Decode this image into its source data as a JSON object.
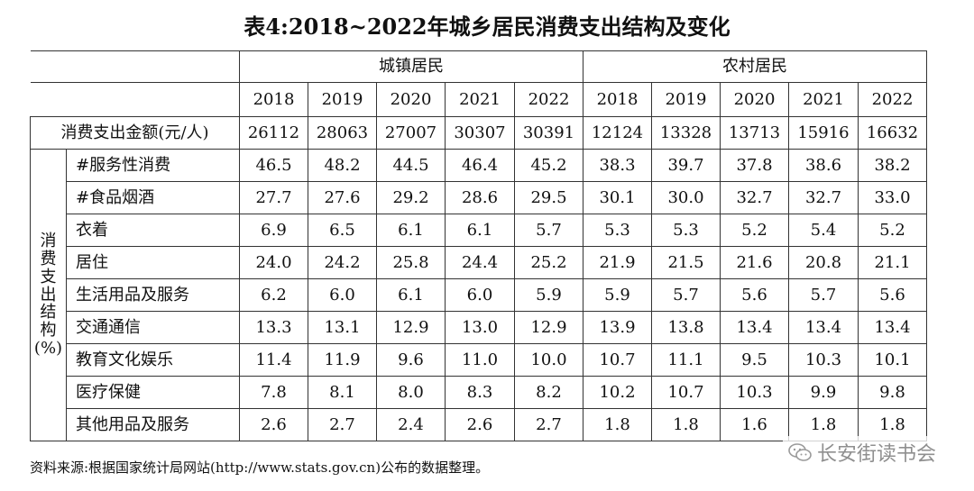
{
  "title": "表4:2018~2022年城乡居民消费支出结构及变化",
  "groups": [
    "城镇居民",
    "农村居民"
  ],
  "years": [
    "2018",
    "2019",
    "2020",
    "2021",
    "2022",
    "2018",
    "2019",
    "2020",
    "2021",
    "2022"
  ],
  "total_row": {
    "label": "消费支出金额(元/人)",
    "values": [
      "26112",
      "28063",
      "27007",
      "30307",
      "30391",
      "12124",
      "13328",
      "13713",
      "15916",
      "16632"
    ]
  },
  "side_label_chars": [
    "消",
    "费",
    "支",
    "出",
    "结",
    "构",
    "(%)"
  ],
  "rows": [
    {
      "label": "#服务性消费",
      "values": [
        "46.5",
        "48.2",
        "44.5",
        "46.4",
        "45.2",
        "38.3",
        "39.7",
        "37.8",
        "38.6",
        "38.2"
      ]
    },
    {
      "label": "#食品烟酒",
      "values": [
        "27.7",
        "27.6",
        "29.2",
        "28.6",
        "29.5",
        "30.1",
        "30.0",
        "32.7",
        "32.7",
        "33.0"
      ]
    },
    {
      "label": "衣着",
      "values": [
        "6.9",
        "6.5",
        "6.1",
        "6.1",
        "5.7",
        "5.3",
        "5.3",
        "5.2",
        "5.4",
        "5.2"
      ]
    },
    {
      "label": "居住",
      "values": [
        "24.0",
        "24.2",
        "25.8",
        "24.4",
        "25.2",
        "21.9",
        "21.5",
        "21.6",
        "20.8",
        "21.1"
      ]
    },
    {
      "label": "生活用品及服务",
      "values": [
        "6.2",
        "6.0",
        "6.1",
        "6.0",
        "5.9",
        "5.9",
        "5.7",
        "5.6",
        "5.7",
        "5.6"
      ]
    },
    {
      "label": "交通通信",
      "values": [
        "13.3",
        "13.1",
        "12.9",
        "13.0",
        "12.9",
        "13.9",
        "13.8",
        "13.4",
        "13.4",
        "13.4"
      ]
    },
    {
      "label": "教育文化娱乐",
      "values": [
        "11.4",
        "11.9",
        "9.6",
        "11.0",
        "10.0",
        "10.7",
        "11.1",
        "9.5",
        "10.3",
        "10.1"
      ]
    },
    {
      "label": "医疗保健",
      "values": [
        "7.8",
        "8.1",
        "8.0",
        "8.3",
        "8.2",
        "10.2",
        "10.7",
        "10.3",
        "9.9",
        "9.8"
      ]
    },
    {
      "label": "其他用品及服务",
      "values": [
        "2.6",
        "2.7",
        "2.4",
        "2.6",
        "2.7",
        "1.8",
        "1.8",
        "1.6",
        "1.8",
        "1.8"
      ]
    }
  ],
  "source": "资料来源:根据国家统计局网站(http://www.stats.gov.cn)公布的数据整理。",
  "watermark": {
    "text": "长安街读书会",
    "icon": "wechat-icon"
  }
}
